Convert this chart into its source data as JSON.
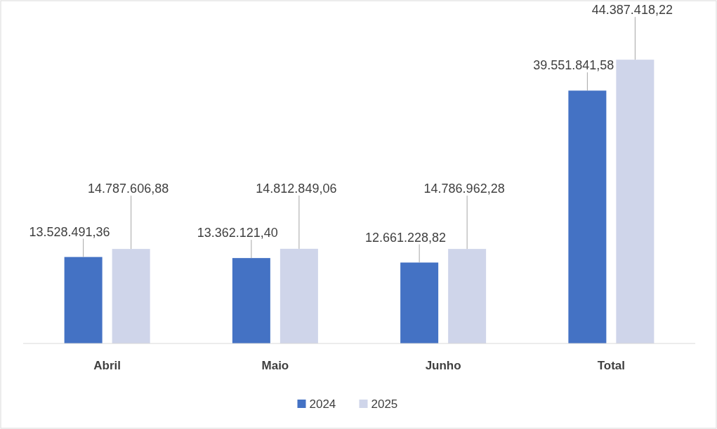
{
  "chart_data": {
    "type": "bar",
    "categories": [
      "Abril",
      "Maio",
      "Junho",
      "Total"
    ],
    "series": [
      {
        "name": "2024",
        "color": "#4472c4",
        "values": [
          13528491.36,
          13362121.4,
          12661228.82,
          39551841.58
        ],
        "value_labels": [
          "13.528.491,36",
          "13.362.121,40",
          "12.661.228,82",
          "39.551.841,58"
        ]
      },
      {
        "name": "2025",
        "color": "#cfd5ea",
        "values": [
          14787606.88,
          14812849.06,
          14786962.28,
          44387418.22
        ],
        "value_labels": [
          "14.787.606,88",
          "14.812.849,06",
          "14.786.962,28",
          "44.387.418,22"
        ]
      }
    ],
    "legend": "bottom"
  }
}
